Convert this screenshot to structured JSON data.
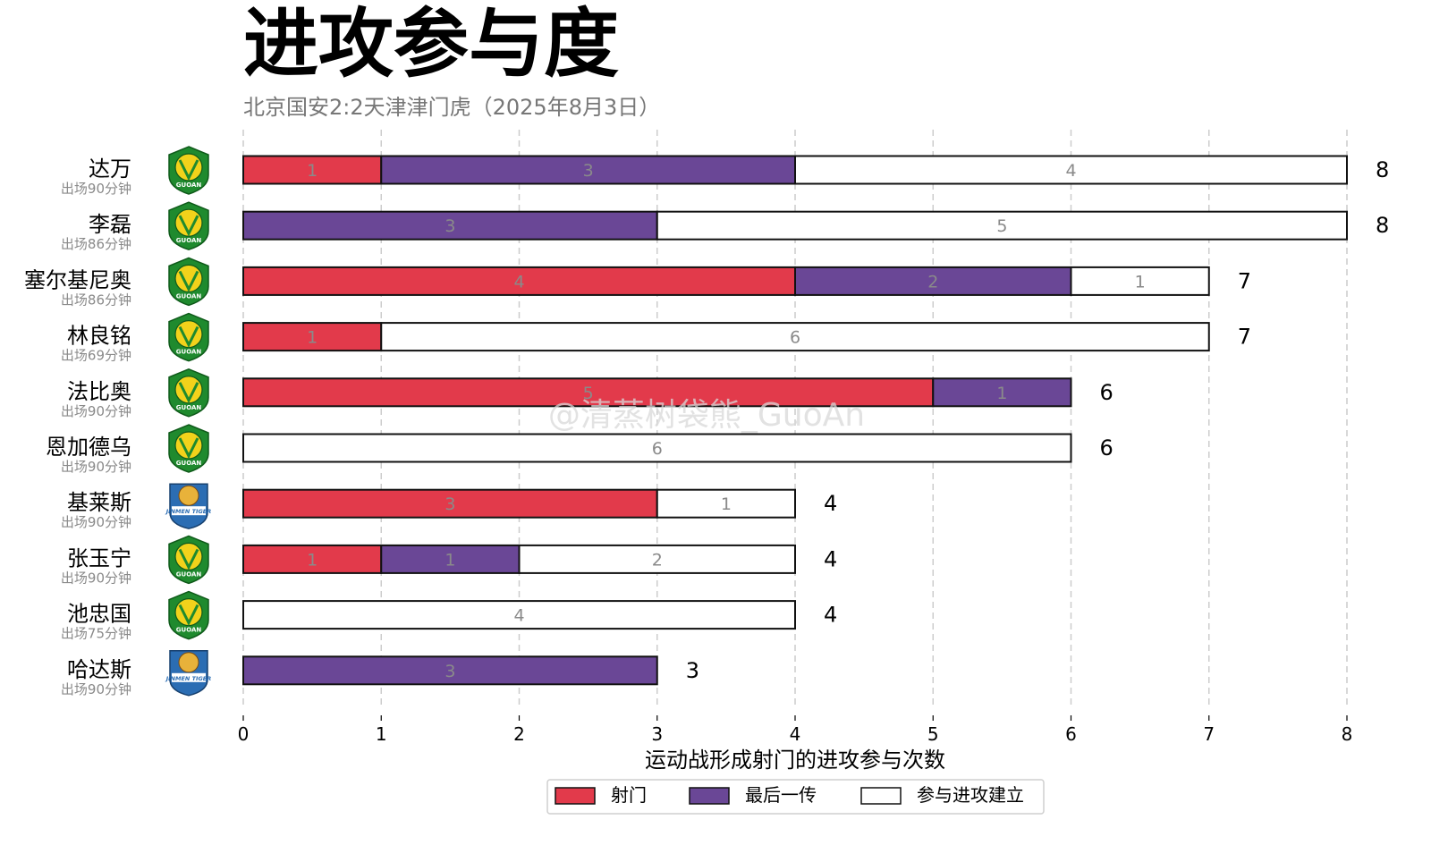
{
  "chart_data": {
    "type": "bar",
    "stacked": true,
    "orientation": "horizontal",
    "title": "进攻参与度",
    "subtitle": "北京国安2:2天津津门虎（2025年8月3日）",
    "xlabel": "运动战形成射门的进攻参与次数",
    "xlim": [
      0,
      8
    ],
    "xticks": [
      0,
      1,
      2,
      3,
      4,
      5,
      6,
      7,
      8
    ],
    "grid": "vertical dashed",
    "legend_position": "bottom-center",
    "series": [
      {
        "name": "射门",
        "color": "#e23a4b"
      },
      {
        "name": "最后一传",
        "color": "#6a4796"
      },
      {
        "name": "参与进攻建立",
        "color": "#ffffff"
      }
    ],
    "players": [
      {
        "name": "达万",
        "minutes": "出场90分钟",
        "team": "guoan",
        "values": [
          1,
          3,
          4
        ],
        "total": 8
      },
      {
        "name": "李磊",
        "minutes": "出场86分钟",
        "team": "guoan",
        "values": [
          0,
          3,
          5
        ],
        "total": 8
      },
      {
        "name": "塞尔基尼奥",
        "minutes": "出场86分钟",
        "team": "guoan",
        "values": [
          4,
          2,
          1
        ],
        "total": 7
      },
      {
        "name": "林良铭",
        "minutes": "出场69分钟",
        "team": "guoan",
        "values": [
          1,
          0,
          6
        ],
        "total": 7
      },
      {
        "name": "法比奥",
        "minutes": "出场90分钟",
        "team": "guoan",
        "values": [
          5,
          1,
          0
        ],
        "total": 6
      },
      {
        "name": "恩加德乌",
        "minutes": "出场90分钟",
        "team": "guoan",
        "values": [
          0,
          0,
          6
        ],
        "total": 6
      },
      {
        "name": "基莱斯",
        "minutes": "出场90分钟",
        "team": "tigers",
        "values": [
          3,
          0,
          1
        ],
        "total": 4
      },
      {
        "name": "张玉宁",
        "minutes": "出场90分钟",
        "team": "guoan",
        "values": [
          1,
          1,
          2
        ],
        "total": 4
      },
      {
        "name": "池忠国",
        "minutes": "出场75分钟",
        "team": "guoan",
        "values": [
          0,
          0,
          4
        ],
        "total": 4
      },
      {
        "name": "哈达斯",
        "minutes": "出场90分钟",
        "team": "tigers",
        "values": [
          0,
          3,
          0
        ],
        "total": 3
      }
    ]
  },
  "logos": {
    "guoan": {
      "icon": "guoan-crest-icon",
      "text": "GUOAN",
      "green": "#1f8a2e",
      "yellow": "#f2d21b"
    },
    "tigers": {
      "icon": "jinmen-tigers-crest-icon",
      "text": "JINMEN TIGER",
      "blue": "#2b6db3",
      "accent": "#e8b23a"
    }
  },
  "watermark": "@清蒸树袋熊_GuoAn",
  "colors": {
    "grid": "#cccccc",
    "inside_label": "#8a8a8a",
    "text": "#000000",
    "subtitle": "#777777"
  }
}
